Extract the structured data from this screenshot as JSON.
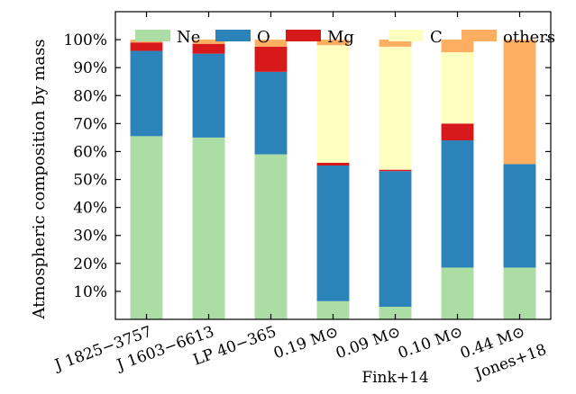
{
  "chart_data": {
    "type": "bar",
    "stacked": true,
    "title": "",
    "xlabel": "",
    "ylabel": "Atmospheric composition by mass",
    "ylim": [
      0,
      110
    ],
    "yticks": [
      10,
      20,
      30,
      40,
      50,
      60,
      70,
      80,
      90,
      100
    ],
    "ytick_labels": [
      "10%",
      "20%",
      "30%",
      "40%",
      "50%",
      "60%",
      "70%",
      "80%",
      "90%",
      "100%"
    ],
    "categories": [
      "J 1825−3757",
      "J 1603−6613",
      "LP 40−365",
      "0.19 M⊙",
      "0.09 M⊙",
      "0.10 M⊙",
      "0.44 M⊙"
    ],
    "groups": [
      {
        "label": "Fink+14",
        "categories": [
          "0.19 M⊙",
          "0.09 M⊙",
          "0.10 M⊙"
        ]
      },
      {
        "label": "Jones+18",
        "categories": [
          "0.44 M⊙"
        ]
      }
    ],
    "legend_position": "top",
    "series": [
      {
        "name": "Ne",
        "color": "#abdda4",
        "values": [
          65.5,
          65,
          59,
          6.5,
          4.5,
          18.5,
          18.5
        ]
      },
      {
        "name": "O",
        "color": "#2b83ba",
        "values": [
          30.5,
          30,
          29.5,
          48.5,
          48.5,
          45.5,
          37
        ]
      },
      {
        "name": "Mg",
        "color": "#d7191c",
        "values": [
          3,
          3.5,
          9,
          1,
          0.5,
          6,
          0
        ]
      },
      {
        "name": "C",
        "color": "#ffffbf",
        "values": [
          0,
          0,
          0,
          42,
          44,
          25.5,
          0
        ]
      },
      {
        "name": "others",
        "color": "#fdae61",
        "values": [
          1,
          1.5,
          2.5,
          2,
          2.5,
          4.5,
          44.5
        ]
      }
    ]
  }
}
